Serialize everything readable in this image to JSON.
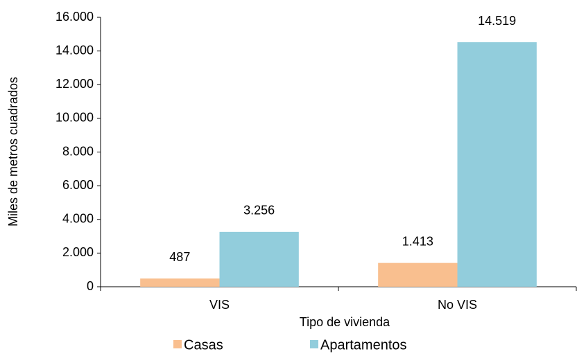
{
  "chart_data": {
    "type": "bar",
    "xlabel": "Tipo de vivienda",
    "ylabel": "Miles de metros cuadrados",
    "categories": [
      "VIS",
      "No VIS"
    ],
    "series": [
      {
        "name": "Casas",
        "color": "#f9bf8f",
        "values": [
          487,
          1413
        ],
        "value_labels": [
          "487",
          "1.413"
        ]
      },
      {
        "name": "Apartamentos",
        "color": "#92cddc",
        "values": [
          3256,
          14519
        ],
        "value_labels": [
          "3.256",
          "14.519"
        ]
      }
    ],
    "ylim": [
      0,
      16000
    ],
    "yticks": [
      0,
      {
        "value": 2000,
        "label": "2.000"
      },
      {
        "value": 4000,
        "label": "4.000"
      },
      {
        "value": 6000,
        "label": "6.000"
      },
      {
        "value": 8000,
        "label": "8.000"
      },
      {
        "value": 10000,
        "label": "10.000"
      },
      {
        "value": 12000,
        "label": "12.000"
      },
      {
        "value": 14000,
        "label": "14.000"
      },
      {
        "value": 16000,
        "label": "16.000"
      }
    ],
    "grid": false,
    "legend": "bottom"
  }
}
